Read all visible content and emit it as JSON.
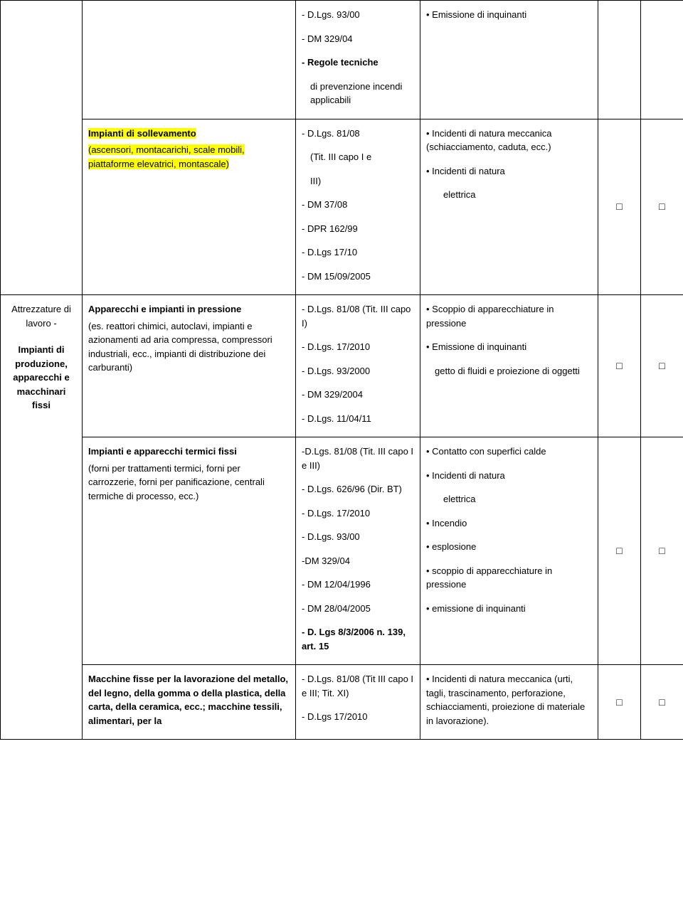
{
  "rows": [
    {
      "cat": "",
      "desc_parts": [],
      "refs": [
        {
          "text": "- D.Lgs. 93/00",
          "cls": ""
        },
        {
          "text": "- DM 329/04",
          "cls": ""
        },
        {
          "text": "- Regole tecniche",
          "cls": "bold"
        },
        {
          "text": "di prevenzione incendi applicabili",
          "cls": "indent"
        }
      ],
      "risks": [
        {
          "text": "• Emissione di inquinanti",
          "cls": ""
        }
      ],
      "chk1": "",
      "chk2": ""
    },
    {
      "cat": "",
      "desc_parts": [
        {
          "text": "Impianti di sollevamento",
          "cls": "bold highlight"
        },
        {
          "text": " (ascensori, montacarichi, scale mobili, piattaforme elevatrici, montascale)",
          "cls": "highlight"
        }
      ],
      "refs": [
        {
          "text": "- D.Lgs. 81/08",
          "cls": ""
        },
        {
          "text": "(Tit. III capo I e",
          "cls": "indent"
        },
        {
          "text": "III)",
          "cls": "indent"
        },
        {
          "text": "- DM 37/08",
          "cls": ""
        },
        {
          "text": "- DPR 162/99",
          "cls": ""
        },
        {
          "text": "- D.Lgs 17/10",
          "cls": ""
        },
        {
          "text": "- DM 15/09/2005",
          "cls": ""
        }
      ],
      "risks": [
        {
          "text": "• Incidenti di natura meccanica (schiacciamento, caduta, ecc.)",
          "cls": ""
        },
        {
          "text": "• Incidenti di natura",
          "cls": ""
        },
        {
          "text": "elettrica",
          "cls": "indent2"
        }
      ],
      "chk1": "□",
      "chk2": "□"
    },
    {
      "cat": "Attrezzature di lavoro -\n\nImpianti di produzione, apparecchi e macchinari fissi",
      "cat_bold_lines": [
        false,
        true
      ],
      "desc_parts": [
        {
          "text": "Apparecchi e impianti in pressione",
          "cls": "bold"
        },
        {
          "text": "(es. reattori chimici, autoclavi, impianti e azionamenti ad aria compressa, compressori industriali, ecc., impianti di distribuzione dei carburanti)",
          "cls": ""
        }
      ],
      "refs": [
        {
          "text": "- D.Lgs. 81/08 (Tit. III capo I)",
          "cls": ""
        },
        {
          "text": "- D.Lgs. 17/2010",
          "cls": ""
        },
        {
          "text": "- D.Lgs. 93/2000",
          "cls": ""
        },
        {
          "text": "- DM 329/2004",
          "cls": ""
        },
        {
          "text": "- D.Lgs. 11/04/11",
          "cls": ""
        }
      ],
      "risks": [
        {
          "text": "• Scoppio di apparecchiature in pressione",
          "cls": ""
        },
        {
          "text": "• Emissione di inquinanti",
          "cls": ""
        },
        {
          "text": "getto di fluidi e proiezione di oggetti",
          "cls": "indent"
        }
      ],
      "chk1": "□",
      "chk2": "□"
    },
    {
      "cat": "",
      "desc_parts": [
        {
          "text": "Impianti e apparecchi termici fissi",
          "cls": "bold"
        },
        {
          "text": "(forni per trattamenti termici, forni per carrozzerie, forni per panificazione, centrali termiche di processo, ecc.)",
          "cls": ""
        }
      ],
      "refs": [
        {
          "text": "-D.Lgs. 81/08  (Tit. III capo I e III)",
          "cls": ""
        },
        {
          "text": "- D.Lgs. 626/96 (Dir. BT)",
          "cls": ""
        },
        {
          "text": "- D.Lgs. 17/2010",
          "cls": ""
        },
        {
          "text": "- D.Lgs. 93/00",
          "cls": ""
        },
        {
          "text": "-DM 329/04",
          "cls": ""
        },
        {
          "text": "- DM 12/04/1996",
          "cls": ""
        },
        {
          "text": "- DM 28/04/2005",
          "cls": ""
        },
        {
          "text": "- D. Lgs 8/3/2006 n. 139, art. 15",
          "cls": "bold"
        }
      ],
      "risks": [
        {
          "text": "• Contatto con superfici calde",
          "cls": ""
        },
        {
          "text": "• Incidenti di natura",
          "cls": ""
        },
        {
          "text": "elettrica",
          "cls": "indent2"
        },
        {
          "text": "• Incendio",
          "cls": ""
        },
        {
          "text": "• esplosione",
          "cls": ""
        },
        {
          "text": "• scoppio di apparecchiature in pressione",
          "cls": ""
        },
        {
          "text": "• emissione di inquinanti",
          "cls": ""
        }
      ],
      "chk1": "□",
      "chk2": "□"
    },
    {
      "cat": "",
      "desc_parts": [
        {
          "text": "Macchine fisse per la lavorazione del metallo, del legno, della gomma o della plastica, della carta, della ceramica, ecc.; macchine tessili, alimentari, per la",
          "cls": "bold"
        }
      ],
      "refs": [
        {
          "text": "- D.Lgs. 81/08  (Tit III capo I e III; Tit. XI)",
          "cls": ""
        },
        {
          "text": "- D.Lgs 17/2010",
          "cls": ""
        }
      ],
      "risks": [
        {
          "text": "• Incidenti di  natura meccanica (urti, tagli, trascinamento, perforazione, schiacciamenti, proiezione di materiale in lavorazione).",
          "cls": ""
        }
      ],
      "chk1": "□",
      "chk2": "□"
    }
  ]
}
